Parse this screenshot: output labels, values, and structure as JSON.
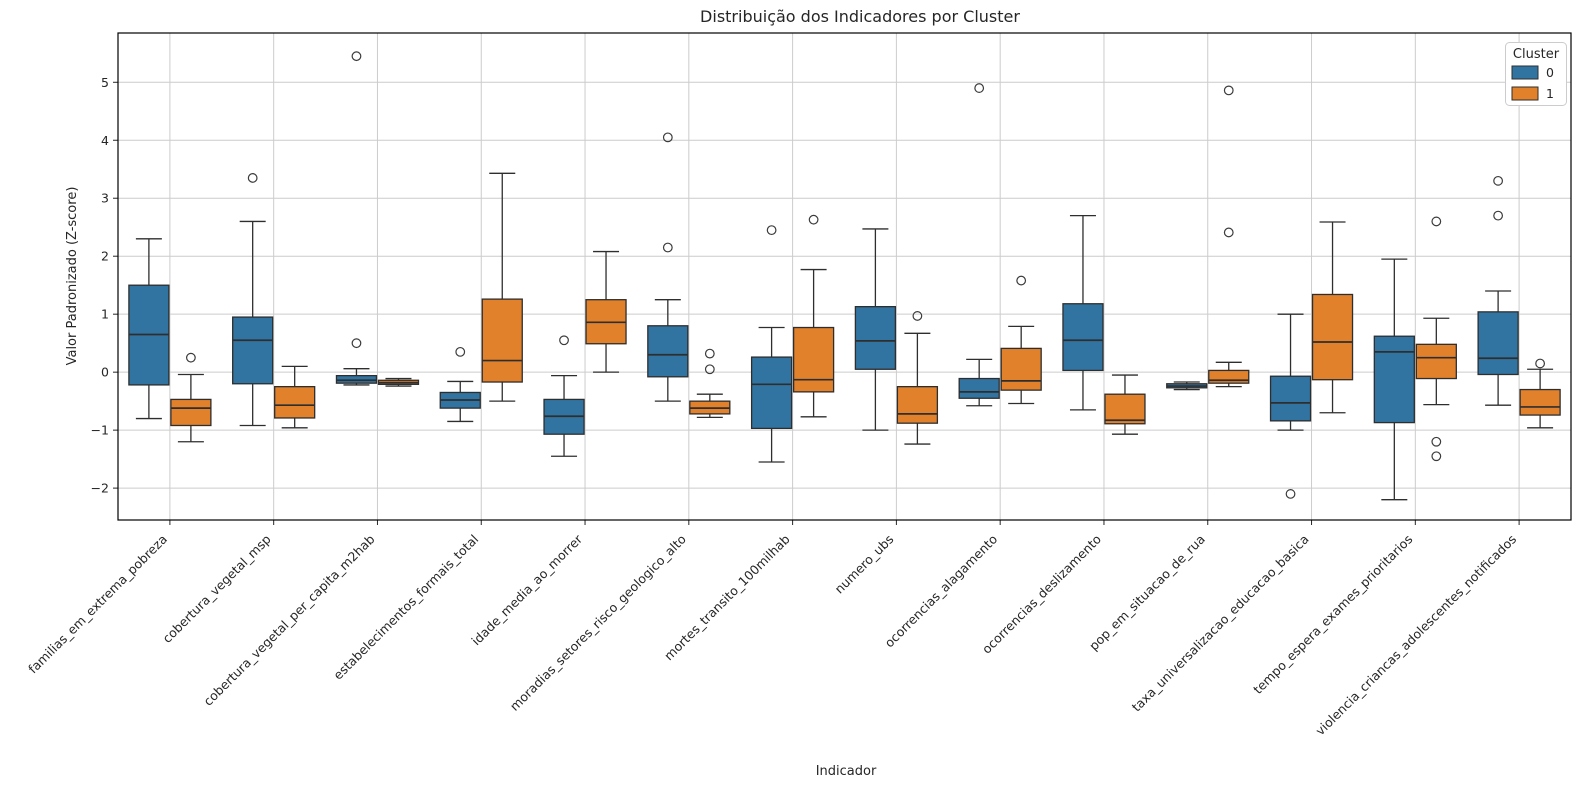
{
  "chart_data": {
    "type": "boxplot",
    "title": "Distribuição dos Indicadores por Cluster",
    "xlabel": "Indicador",
    "ylabel": "Valor Padronizado (Z-score)",
    "ylim": [
      -2.55,
      5.85
    ],
    "yticks": [
      -2,
      -1,
      0,
      1,
      2,
      3,
      4,
      5
    ],
    "grid": true,
    "legend": {
      "title": "Cluster",
      "position": "upper right",
      "entries": [
        {
          "label": "0",
          "color": "#3274a1"
        },
        {
          "label": "1",
          "color": "#e1812c"
        }
      ]
    },
    "categories": [
      "familias_em_extrema_pobreza",
      "cobertura_vegetal_msp",
      "cobertura_vegetal_per_capita_m2hab",
      "estabelecimentos_formais_total",
      "idade_media_ao_morrer",
      "moradias_setores_risco_geologico_alto",
      "mortes_transito_100milhab",
      "numero_ubs",
      "ocorrencias_alagamento",
      "ocorrencias_deslizamento",
      "pop_em_situacao_de_rua",
      "taxa_universalizacao_educacao_basica",
      "tempo_espera_exames_prioritarios",
      "violencia_criancas_adolescentes_notificados"
    ],
    "series": [
      {
        "name": "0",
        "color": "#3274a1",
        "boxes": [
          {
            "lo": -0.8,
            "q1": -0.22,
            "med": 0.65,
            "q3": 1.5,
            "hi": 2.3,
            "out": []
          },
          {
            "lo": -0.92,
            "q1": -0.2,
            "med": 0.55,
            "q3": 0.95,
            "hi": 2.6,
            "out": [
              3.35
            ]
          },
          {
            "lo": -0.22,
            "q1": -0.19,
            "med": -0.14,
            "q3": -0.06,
            "hi": 0.06,
            "out": [
              5.45,
              0.5
            ]
          },
          {
            "lo": -0.85,
            "q1": -0.62,
            "med": -0.48,
            "q3": -0.35,
            "hi": -0.16,
            "out": [
              0.35
            ]
          },
          {
            "lo": -1.45,
            "q1": -1.07,
            "med": -0.76,
            "q3": -0.47,
            "hi": -0.06,
            "out": [
              0.55
            ]
          },
          {
            "lo": -0.5,
            "q1": -0.08,
            "med": 0.3,
            "q3": 0.8,
            "hi": 1.25,
            "out": [
              4.05,
              2.15
            ]
          },
          {
            "lo": -1.55,
            "q1": -0.97,
            "med": -0.21,
            "q3": 0.26,
            "hi": 0.77,
            "out": [
              2.45
            ]
          },
          {
            "lo": -1.0,
            "q1": 0.05,
            "med": 0.54,
            "q3": 1.13,
            "hi": 2.47,
            "out": []
          },
          {
            "lo": -0.58,
            "q1": -0.45,
            "med": -0.34,
            "q3": -0.11,
            "hi": 0.22,
            "out": [
              4.9
            ]
          },
          {
            "lo": -0.65,
            "q1": 0.03,
            "med": 0.55,
            "q3": 1.18,
            "hi": 2.7,
            "out": []
          },
          {
            "lo": -0.3,
            "q1": -0.27,
            "med": -0.24,
            "q3": -0.2,
            "hi": -0.17,
            "out": []
          },
          {
            "lo": -1.0,
            "q1": -0.84,
            "med": -0.53,
            "q3": -0.07,
            "hi": 1.0,
            "out": [
              -2.1
            ]
          },
          {
            "lo": -2.2,
            "q1": -0.87,
            "med": 0.35,
            "q3": 0.62,
            "hi": 1.95,
            "out": []
          },
          {
            "lo": -0.57,
            "q1": -0.04,
            "med": 0.24,
            "q3": 1.04,
            "hi": 1.4,
            "out": [
              3.3,
              2.7
            ]
          }
        ]
      },
      {
        "name": "1",
        "color": "#e1812c",
        "boxes": [
          {
            "lo": -1.2,
            "q1": -0.92,
            "med": -0.62,
            "q3": -0.47,
            "hi": -0.04,
            "out": [
              0.25
            ]
          },
          {
            "lo": -0.96,
            "q1": -0.79,
            "med": -0.57,
            "q3": -0.25,
            "hi": 0.1,
            "out": []
          },
          {
            "lo": -0.24,
            "q1": -0.21,
            "med": -0.18,
            "q3": -0.14,
            "hi": -0.11,
            "out": []
          },
          {
            "lo": -0.5,
            "q1": -0.17,
            "med": 0.2,
            "q3": 1.26,
            "hi": 3.43,
            "out": []
          },
          {
            "lo": 0.0,
            "q1": 0.49,
            "med": 0.86,
            "q3": 1.25,
            "hi": 2.08,
            "out": []
          },
          {
            "lo": -0.78,
            "q1": -0.72,
            "med": -0.62,
            "q3": -0.5,
            "hi": -0.38,
            "out": [
              0.32,
              0.05
            ]
          },
          {
            "lo": -0.77,
            "q1": -0.34,
            "med": -0.13,
            "q3": 0.77,
            "hi": 1.77,
            "out": [
              2.63
            ]
          },
          {
            "lo": -1.24,
            "q1": -0.88,
            "med": -0.72,
            "q3": -0.25,
            "hi": 0.67,
            "out": [
              0.97
            ]
          },
          {
            "lo": -0.54,
            "q1": -0.31,
            "med": -0.15,
            "q3": 0.41,
            "hi": 0.79,
            "out": [
              1.58
            ]
          },
          {
            "lo": -1.07,
            "q1": -0.89,
            "med": -0.83,
            "q3": -0.38,
            "hi": -0.05,
            "out": []
          },
          {
            "lo": -0.25,
            "q1": -0.19,
            "med": -0.14,
            "q3": 0.03,
            "hi": 0.17,
            "out": [
              4.86,
              2.41
            ]
          },
          {
            "lo": -0.7,
            "q1": -0.13,
            "med": 0.52,
            "q3": 1.34,
            "hi": 2.59,
            "out": []
          },
          {
            "lo": -0.56,
            "q1": -0.11,
            "med": 0.25,
            "q3": 0.48,
            "hi": 0.93,
            "out": [
              2.6,
              -1.2,
              -1.45
            ]
          },
          {
            "lo": -0.96,
            "q1": -0.74,
            "med": -0.6,
            "q3": -0.3,
            "hi": 0.05,
            "out": [
              0.15
            ]
          }
        ]
      }
    ]
  }
}
